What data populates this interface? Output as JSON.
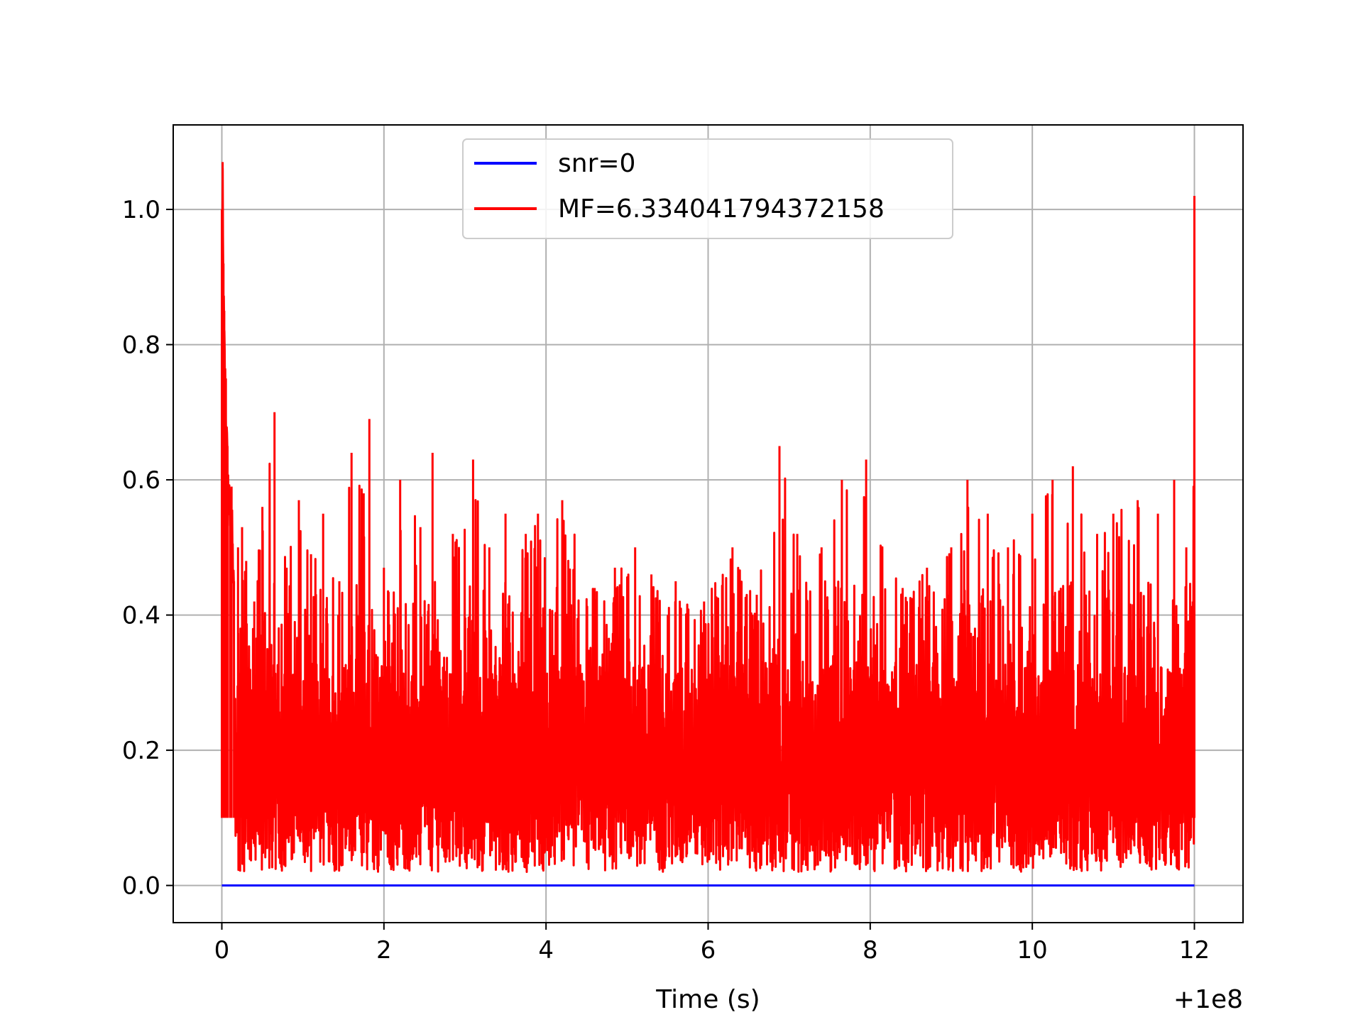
{
  "chart_data": {
    "type": "line",
    "title": "",
    "xlabel": "Time (s)",
    "ylabel": "",
    "x_offset_label": "+1e8",
    "xlim": [
      -0.6,
      12.6
    ],
    "ylim": [
      -0.055,
      1.125
    ],
    "x_ticks": [
      0,
      2,
      4,
      6,
      8,
      10,
      12
    ],
    "y_ticks": [
      0.0,
      0.2,
      0.4,
      0.6,
      0.8,
      1.0
    ],
    "x_tick_labels": [
      "0",
      "2",
      "4",
      "6",
      "8",
      "10",
      "12"
    ],
    "y_tick_labels": [
      "0.0",
      "0.2",
      "0.4",
      "0.6",
      "0.8",
      "1.0"
    ],
    "grid": true,
    "legend_position": "upper-center",
    "series": [
      {
        "name": "snr=0",
        "color": "#0000ff",
        "x": [
          0,
          12
        ],
        "y": [
          0.0,
          0.0
        ]
      },
      {
        "name": "MF=6.334041794372158",
        "color": "#ff0000",
        "x": [
          0.0,
          0.01,
          0.02,
          0.03,
          0.05,
          0.07,
          0.1,
          0.12,
          0.15,
          0.2,
          0.25,
          0.3,
          0.4,
          0.5,
          0.65,
          0.8,
          0.95,
          1.1,
          1.25,
          1.45,
          1.6,
          1.75,
          1.82,
          2.0,
          2.2,
          2.45,
          2.6,
          2.85,
          3.1,
          3.3,
          3.5,
          3.75,
          3.9,
          4.2,
          4.6,
          4.85,
          5.1,
          5.3,
          5.6,
          5.95,
          6.3,
          6.6,
          6.88,
          7.1,
          7.4,
          7.65,
          7.95,
          8.4,
          8.7,
          9.0,
          9.2,
          9.45,
          9.7,
          10.0,
          10.25,
          10.5,
          10.8,
          11.0,
          11.3,
          11.55,
          11.75,
          11.9,
          11.98,
          12.0
        ],
        "y": [
          1.0,
          1.07,
          0.92,
          0.85,
          0.75,
          0.65,
          0.58,
          0.59,
          0.45,
          0.5,
          0.53,
          0.48,
          0.42,
          0.56,
          0.7,
          0.47,
          0.57,
          0.49,
          0.55,
          0.45,
          0.64,
          0.58,
          0.69,
          0.47,
          0.6,
          0.53,
          0.64,
          0.52,
          0.63,
          0.5,
          0.55,
          0.52,
          0.55,
          0.57,
          0.44,
          0.47,
          0.5,
          0.46,
          0.45,
          0.42,
          0.5,
          0.43,
          0.65,
          0.52,
          0.5,
          0.6,
          0.63,
          0.44,
          0.47,
          0.5,
          0.6,
          0.55,
          0.5,
          0.55,
          0.6,
          0.62,
          0.52,
          0.55,
          0.57,
          0.55,
          0.6,
          0.5,
          0.42,
          1.02
        ]
      }
    ]
  }
}
